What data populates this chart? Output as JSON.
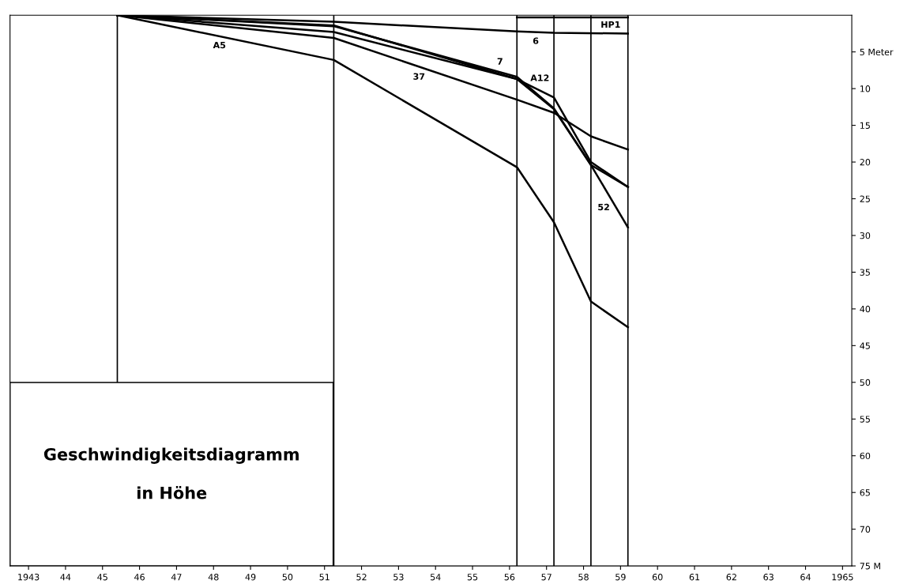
{
  "chart_data": {
    "type": "line",
    "annotations": [
      "Geschwindigkeitsdiagramm",
      "in Höhe"
    ],
    "series": [
      {
        "name": "6",
        "color": "#000000",
        "x": [
          1945.4,
          1951.25,
          1956.2,
          1957.2,
          1959.2
        ],
        "values": [
          0,
          0.9,
          2.2,
          2.4,
          2.5
        ]
      },
      {
        "name": "HP1",
        "color": "#000000",
        "x": [
          1956.2,
          1959.2
        ],
        "values": [
          0.3,
          0.3
        ]
      },
      {
        "name": "7",
        "color": "#000000",
        "x": [
          1945.4,
          1951.25,
          1956.2,
          1957.2,
          1958.2,
          1959.2
        ],
        "values": [
          0,
          1.5,
          8.4,
          12.7,
          20.4,
          23.4
        ]
      },
      {
        "name": "A12",
        "color": "#000000",
        "x": [
          1945.4,
          1951.25,
          1956.2,
          1957.2,
          1958.2,
          1959.2
        ],
        "values": [
          0,
          2.3,
          8.7,
          11.2,
          20.0,
          23.4
        ]
      },
      {
        "name": "52",
        "color": "#000000",
        "x": [
          1945.4,
          1951.25,
          1956.2,
          1957.2,
          1958.2,
          1959.2
        ],
        "values": [
          0,
          1.4,
          8.7,
          12.8,
          20.4,
          28.9
        ]
      },
      {
        "name": "37",
        "color": "#000000",
        "x": [
          1945.4,
          1951.25,
          1956.2,
          1957.2,
          1958.2,
          1959.2
        ],
        "values": [
          0,
          3.1,
          11.5,
          13.3,
          16.5,
          18.3
        ]
      },
      {
        "name": "A5",
        "color": "#000000",
        "x": [
          1945.4,
          1951.25,
          1956.2,
          1957.2,
          1958.2,
          1959.2
        ],
        "values": [
          0,
          6.1,
          20.7,
          28.2,
          39.0,
          42.5
        ]
      }
    ],
    "ref_lines": [
      {
        "axis": "x",
        "value": 1945.4,
        "color": "#000000"
      },
      {
        "axis": "x",
        "value": 1951.25,
        "color": "#000000"
      },
      {
        "axis": "x",
        "value": 1956.2,
        "color": "#000000"
      },
      {
        "axis": "x",
        "value": 1957.2,
        "color": "#000000"
      },
      {
        "axis": "x",
        "value": 1958.2,
        "color": "#000000"
      },
      {
        "axis": "x",
        "value": 1959.2,
        "color": "#000000"
      }
    ],
    "xlim": [
      1942.5,
      1965.25
    ],
    "xticks": [
      1943,
      {
        "value": 1944,
        "label": "44"
      },
      {
        "value": 1945,
        "label": "45"
      },
      {
        "value": 1946,
        "label": "46"
      },
      {
        "value": 1947,
        "label": "47"
      },
      {
        "value": 1948,
        "label": "48"
      },
      {
        "value": 1949,
        "label": "49"
      },
      {
        "value": 1950,
        "label": "50"
      },
      {
        "value": 1951,
        "label": "51"
      },
      {
        "value": 1952,
        "label": "52"
      },
      {
        "value": 1953,
        "label": "53"
      },
      {
        "value": 1954,
        "label": "54"
      },
      {
        "value": 1955,
        "label": "55"
      },
      {
        "value": 1956,
        "label": "56"
      },
      {
        "value": 1957,
        "label": "57"
      },
      {
        "value": 1958,
        "label": "58"
      },
      {
        "value": 1959,
        "label": "59"
      },
      {
        "value": 1960,
        "label": "60"
      },
      {
        "value": 1961,
        "label": "61"
      },
      {
        "value": 1962,
        "label": "62"
      },
      {
        "value": 1963,
        "label": "63"
      },
      {
        "value": 1964,
        "label": "64"
      },
      1965
    ],
    "ylim": [
      75,
      0
    ],
    "yticks": [
      {
        "value": 5,
        "label": "5 Meter"
      },
      10,
      15,
      20,
      25,
      30,
      35,
      40,
      45,
      50,
      55,
      60,
      65,
      70,
      {
        "value": 75,
        "label": "75 M"
      }
    ],
    "grid": false,
    "legend": false,
    "marker": "none",
    "line_style": "solid"
  }
}
